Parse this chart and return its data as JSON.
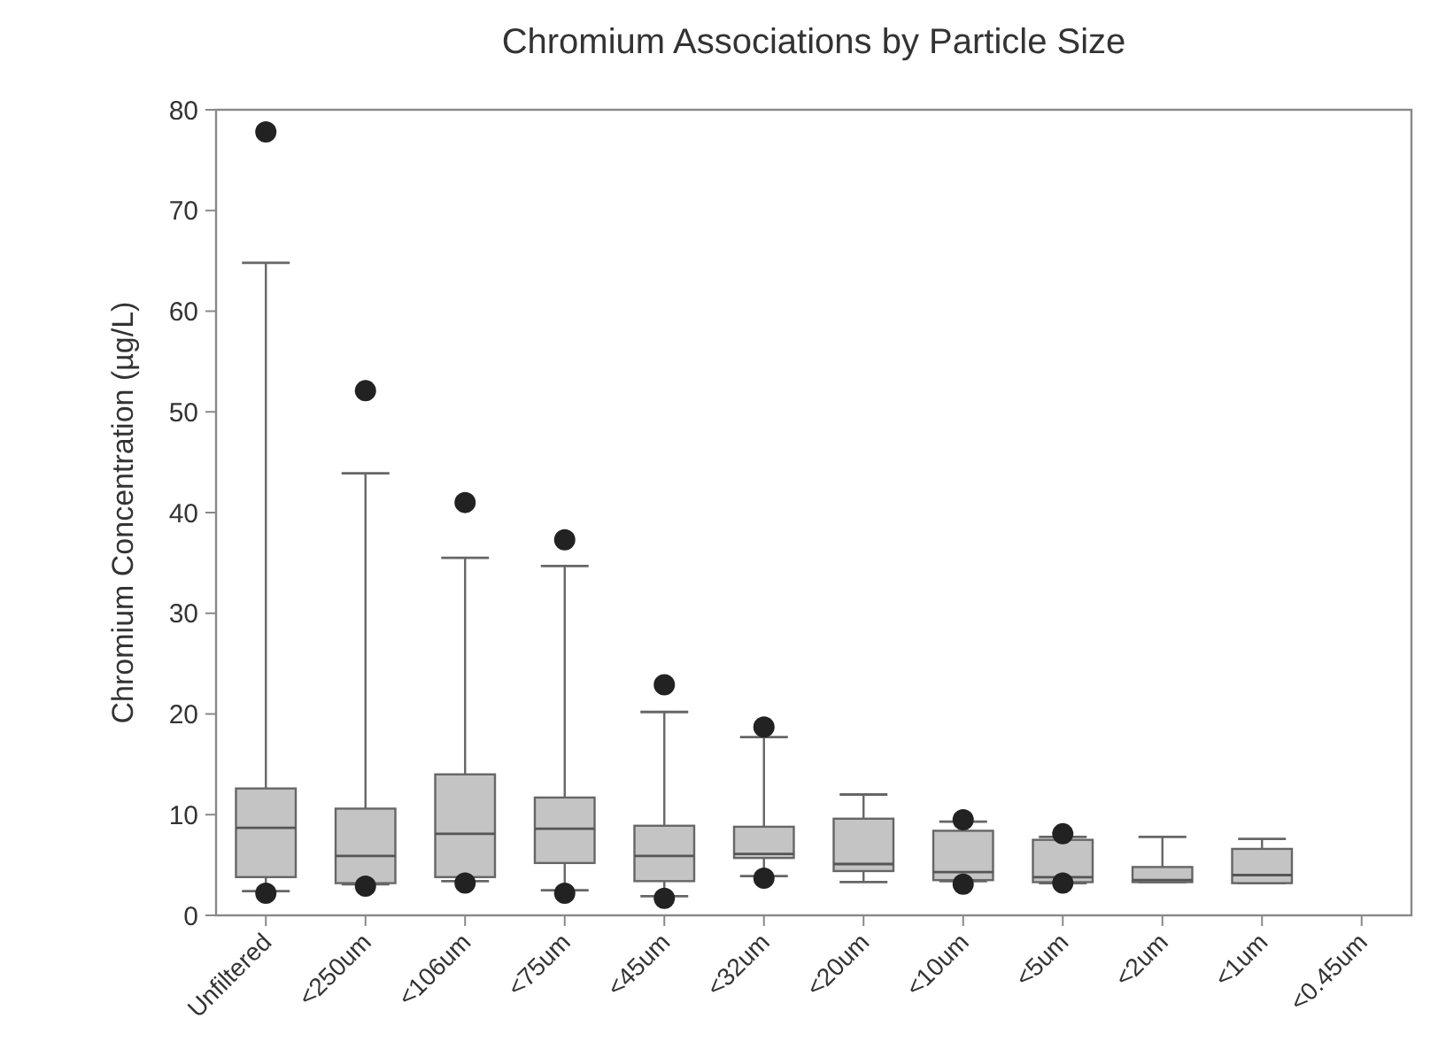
{
  "chart_data": {
    "type": "box",
    "title": "Chromium Associations by Particle Size",
    "ylabel": "Chromium Concentration (µg/L)",
    "categories": [
      "Unfiltered",
      "<250um",
      "<106um",
      "<75um",
      "<45um",
      "<32um",
      "<20um",
      "<10um",
      "<5um",
      "<2um",
      "<1um",
      "<0.45um"
    ],
    "color": "#c4c4c4",
    "boxes": [
      {
        "low": 2.4,
        "q1": 3.8,
        "median": 8.7,
        "q3": 12.6,
        "high": 64.8,
        "outliers": [
          77.8,
          2.2
        ]
      },
      {
        "low": 3.1,
        "q1": 3.2,
        "median": 5.9,
        "q3": 10.6,
        "high": 43.9,
        "outliers": [
          52.1,
          2.9
        ]
      },
      {
        "low": 3.4,
        "q1": 3.8,
        "median": 8.1,
        "q3": 14.0,
        "high": 35.5,
        "outliers": [
          41.0,
          3.2
        ]
      },
      {
        "low": 2.5,
        "q1": 5.2,
        "median": 8.6,
        "q3": 11.7,
        "high": 34.7,
        "outliers": [
          37.3,
          2.2
        ]
      },
      {
        "low": 1.9,
        "q1": 3.4,
        "median": 5.9,
        "q3": 8.9,
        "high": 20.2,
        "outliers": [
          22.9,
          1.7
        ]
      },
      {
        "low": 3.9,
        "q1": 5.7,
        "median": 6.1,
        "q3": 8.8,
        "high": 17.7,
        "outliers": [
          18.7,
          3.7
        ]
      },
      {
        "low": 3.3,
        "q1": 4.4,
        "median": 5.1,
        "q3": 9.6,
        "high": 12.0
      },
      {
        "low": 3.4,
        "q1": 3.5,
        "median": 4.3,
        "q3": 8.4,
        "high": 9.3,
        "outliers": [
          9.5,
          3.1
        ]
      },
      {
        "low": 3.2,
        "q1": 3.3,
        "median": 3.8,
        "q3": 7.5,
        "high": 7.8,
        "outliers": [
          8.1,
          3.2
        ]
      },
      {
        "low": 3.3,
        "q1": 3.3,
        "median": 3.5,
        "q3": 4.8,
        "high": 7.8
      },
      {
        "low": 3.2,
        "q1": 3.2,
        "median": 4.0,
        "q3": 6.6,
        "high": 7.6
      },
      null
    ],
    "ylim": [
      0,
      80
    ],
    "yticks": [
      0,
      10,
      20,
      30,
      40,
      50,
      60,
      70,
      80
    ],
    "grid": false
  }
}
